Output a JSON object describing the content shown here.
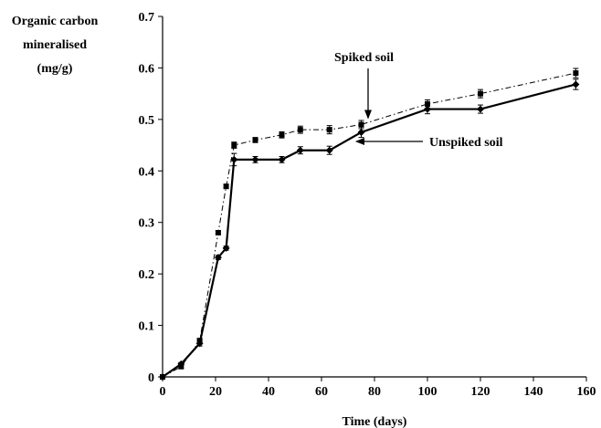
{
  "chart_data": {
    "type": "line",
    "xlabel": "Time (days)",
    "ylabel_lines": [
      "Organic carbon",
      "mineralised",
      "(mg/g)"
    ],
    "xlim": [
      0,
      160
    ],
    "ylim": [
      0,
      0.7
    ],
    "xticks": [
      0,
      20,
      40,
      60,
      80,
      100,
      120,
      140,
      160
    ],
    "yticks": [
      0,
      0.1,
      0.2,
      0.3,
      0.4,
      0.5,
      0.6,
      0.7
    ],
    "xtick_labels": [
      "0",
      "20",
      "40",
      "60",
      "80",
      "100",
      "120",
      "140",
      "160"
    ],
    "ytick_labels": [
      "0",
      "0.1",
      "0.2",
      "0.3",
      "0.4",
      "0.5",
      "0.6",
      "0.7"
    ],
    "grid": false,
    "series": [
      {
        "name": "Spiked soil",
        "style": "dash-dot",
        "marker": "square",
        "x": [
          0,
          7,
          14,
          21,
          24,
          27,
          35,
          45,
          52,
          63,
          75,
          100,
          120,
          156
        ],
        "y": [
          0,
          0.02,
          0.07,
          0.28,
          0.37,
          0.45,
          0.46,
          0.47,
          0.48,
          0.48,
          0.49,
          0.53,
          0.55,
          0.59
        ],
        "err": [
          0,
          0.003,
          0.005,
          0.004,
          0.004,
          0.006,
          0.005,
          0.006,
          0.007,
          0.008,
          0.008,
          0.008,
          0.008,
          0.009
        ]
      },
      {
        "name": "Unspiked soil",
        "style": "solid",
        "marker": "diamond",
        "x": [
          0,
          7,
          14,
          21,
          24,
          27,
          35,
          45,
          52,
          63,
          75,
          100,
          120,
          156
        ],
        "y": [
          0,
          0.025,
          0.065,
          0.232,
          0.25,
          0.422,
          0.422,
          0.422,
          0.44,
          0.44,
          0.475,
          0.52,
          0.52,
          0.568
        ],
        "err": [
          0,
          0.003,
          0.005,
          0.004,
          0.004,
          0.012,
          0.006,
          0.006,
          0.007,
          0.008,
          0.01,
          0.009,
          0.008,
          0.01
        ]
      }
    ],
    "annotations": [
      {
        "text": "Spiked soil",
        "series": "Spiked soil"
      },
      {
        "text": "Unspiked soil",
        "series": "Unspiked soil"
      }
    ]
  }
}
